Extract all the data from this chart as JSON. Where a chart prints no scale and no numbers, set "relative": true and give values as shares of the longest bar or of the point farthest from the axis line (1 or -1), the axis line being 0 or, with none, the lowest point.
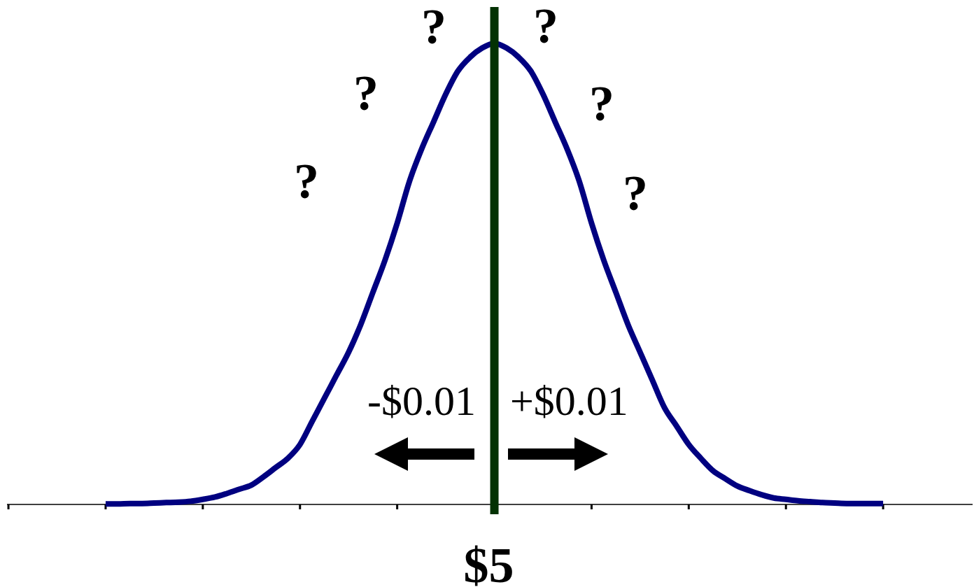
{
  "chart_data": {
    "type": "line",
    "relative": true,
    "categories": [
      null,
      null,
      null,
      null,
      null,
      null,
      null,
      null,
      null,
      null,
      null,
      null,
      null,
      null,
      null,
      null,
      null,
      null,
      null,
      null,
      null,
      null,
      null,
      null,
      null,
      null,
      null,
      null,
      null,
      null,
      null,
      null,
      null,
      null,
      null,
      null,
      null,
      null,
      null,
      null,
      null,
      null,
      null,
      null,
      null,
      null,
      null,
      null,
      null,
      null,
      null,
      null,
      null,
      null,
      null,
      null,
      null,
      null,
      null,
      null,
      null,
      null,
      null,
      null,
      null
    ],
    "values": [
      0.001,
      0.001,
      0.002,
      0.002,
      0.003,
      0.004,
      0.005,
      0.007,
      0.011,
      0.016,
      0.024,
      0.033,
      0.042,
      0.06,
      0.08,
      0.1,
      0.13,
      0.18,
      0.23,
      0.28,
      0.33,
      0.39,
      0.46,
      0.53,
      0.61,
      0.7,
      0.77,
      0.83,
      0.89,
      0.94,
      0.97,
      0.99,
      1,
      0.99,
      0.97,
      0.94,
      0.89,
      0.83,
      0.77,
      0.7,
      0.61,
      0.53,
      0.46,
      0.39,
      0.33,
      0.27,
      0.21,
      0.17,
      0.13,
      0.1,
      0.073,
      0.056,
      0.04,
      0.03,
      0.021,
      0.014,
      0.011,
      0.008,
      0.006,
      0.004,
      0.003,
      0.002,
      0.002,
      0.002,
      0.002
    ],
    "color": "#000080",
    "ref_lines": [
      {
        "axis": "x",
        "value": "$5",
        "color": "#033203"
      }
    ],
    "annotations": [
      "?",
      "?",
      "?",
      "?",
      "?",
      "?",
      "-$0.01",
      "+$0.01"
    ]
  }
}
